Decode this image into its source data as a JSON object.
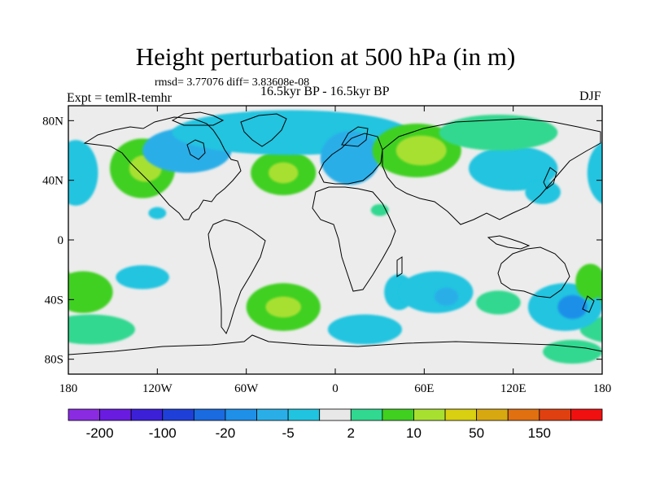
{
  "title": "Height perturbation at 500 hPa (in m)",
  "stats": "rmsd= 3.77076 diff= 3.83608e-08",
  "left_label": "Expt = temlR-temhr",
  "center_label": "16.5kyr BP - 16.5kyr BP",
  "right_label": "DJF",
  "colors": {
    "background": "#ececec",
    "border": "#000000"
  },
  "chart_data": {
    "type": "heatmap",
    "title": "Height perturbation at 500 hPa (in m)",
    "x_range": [
      -180,
      180
    ],
    "y_range": [
      -90,
      90
    ],
    "x_ticks": [
      {
        "value": -180,
        "label": "180"
      },
      {
        "value": -120,
        "label": "120W"
      },
      {
        "value": -60,
        "label": "60W"
      },
      {
        "value": 0,
        "label": "0"
      },
      {
        "value": 60,
        "label": "60E"
      },
      {
        "value": 120,
        "label": "120E"
      },
      {
        "value": 180,
        "label": "180"
      }
    ],
    "y_ticks": [
      {
        "value": 80,
        "label": "80N"
      },
      {
        "value": 40,
        "label": "40N"
      },
      {
        "value": 0,
        "label": "0"
      },
      {
        "value": -40,
        "label": "40S"
      },
      {
        "value": -80,
        "label": "80S"
      }
    ],
    "colorbar": {
      "colors": [
        "#8a2be2",
        "#6a1be0",
        "#3c20d8",
        "#1f40d8",
        "#1a6ae0",
        "#1e90e8",
        "#2aaee8",
        "#20c4e0",
        "#e8e8e8",
        "#30d890",
        "#40d020",
        "#a8e030",
        "#d8d010",
        "#d8a810",
        "#e07010",
        "#e04010",
        "#f01010"
      ],
      "tick_labels": [
        "-200",
        "-100",
        "-20",
        "-5",
        "2",
        "10",
        "50",
        "150"
      ]
    },
    "anomalies": [
      {
        "lon": -175,
        "lat": 45,
        "level": 7,
        "rx": 15,
        "ry": 22
      },
      {
        "lon": -130,
        "lat": 48,
        "level": 10,
        "rx": 22,
        "ry": 20
      },
      {
        "lon": -128,
        "lat": 48,
        "level": 11,
        "rx": 11,
        "ry": 9
      },
      {
        "lon": -100,
        "lat": 60,
        "level": 6,
        "rx": 30,
        "ry": 15
      },
      {
        "lon": -35,
        "lat": 45,
        "level": 10,
        "rx": 22,
        "ry": 15
      },
      {
        "lon": -35,
        "lat": 45,
        "level": 11,
        "rx": 10,
        "ry": 7
      },
      {
        "lon": -30,
        "lat": 72,
        "level": 7,
        "rx": 80,
        "ry": 15
      },
      {
        "lon": 10,
        "lat": 55,
        "level": 6,
        "rx": 20,
        "ry": 18
      },
      {
        "lon": 55,
        "lat": 60,
        "level": 10,
        "rx": 30,
        "ry": 18
      },
      {
        "lon": 58,
        "lat": 60,
        "level": 11,
        "rx": 17,
        "ry": 10
      },
      {
        "lon": 120,
        "lat": 48,
        "level": 7,
        "rx": 30,
        "ry": 15
      },
      {
        "lon": 110,
        "lat": 72,
        "level": 9,
        "rx": 40,
        "ry": 12
      },
      {
        "lon": 140,
        "lat": 32,
        "level": 7,
        "rx": 12,
        "ry": 8
      },
      {
        "lon": 30,
        "lat": 20,
        "level": 9,
        "rx": 6,
        "ry": 4
      },
      {
        "lon": -120,
        "lat": 18,
        "level": 7,
        "rx": 6,
        "ry": 4
      },
      {
        "lon": -170,
        "lat": -35,
        "level": 10,
        "rx": 20,
        "ry": 14
      },
      {
        "lon": -165,
        "lat": -60,
        "level": 9,
        "rx": 30,
        "ry": 10
      },
      {
        "lon": -130,
        "lat": -25,
        "level": 7,
        "rx": 18,
        "ry": 8
      },
      {
        "lon": -35,
        "lat": -45,
        "level": 10,
        "rx": 25,
        "ry": 16
      },
      {
        "lon": -35,
        "lat": -45,
        "level": 11,
        "rx": 12,
        "ry": 7
      },
      {
        "lon": 20,
        "lat": -60,
        "level": 7,
        "rx": 25,
        "ry": 10
      },
      {
        "lon": 43,
        "lat": -35,
        "level": 7,
        "rx": 10,
        "ry": 12
      },
      {
        "lon": 68,
        "lat": -35,
        "level": 7,
        "rx": 25,
        "ry": 14
      },
      {
        "lon": 75,
        "lat": -38,
        "level": 6,
        "rx": 8,
        "ry": 6
      },
      {
        "lon": 110,
        "lat": -42,
        "level": 9,
        "rx": 15,
        "ry": 8
      },
      {
        "lon": 155,
        "lat": -45,
        "level": 7,
        "rx": 25,
        "ry": 16
      },
      {
        "lon": 160,
        "lat": -45,
        "level": 5,
        "rx": 10,
        "ry": 8
      },
      {
        "lon": 172,
        "lat": -28,
        "level": 10,
        "rx": 10,
        "ry": 12
      },
      {
        "lon": 160,
        "lat": -75,
        "level": 9,
        "rx": 20,
        "ry": 8
      }
    ]
  }
}
